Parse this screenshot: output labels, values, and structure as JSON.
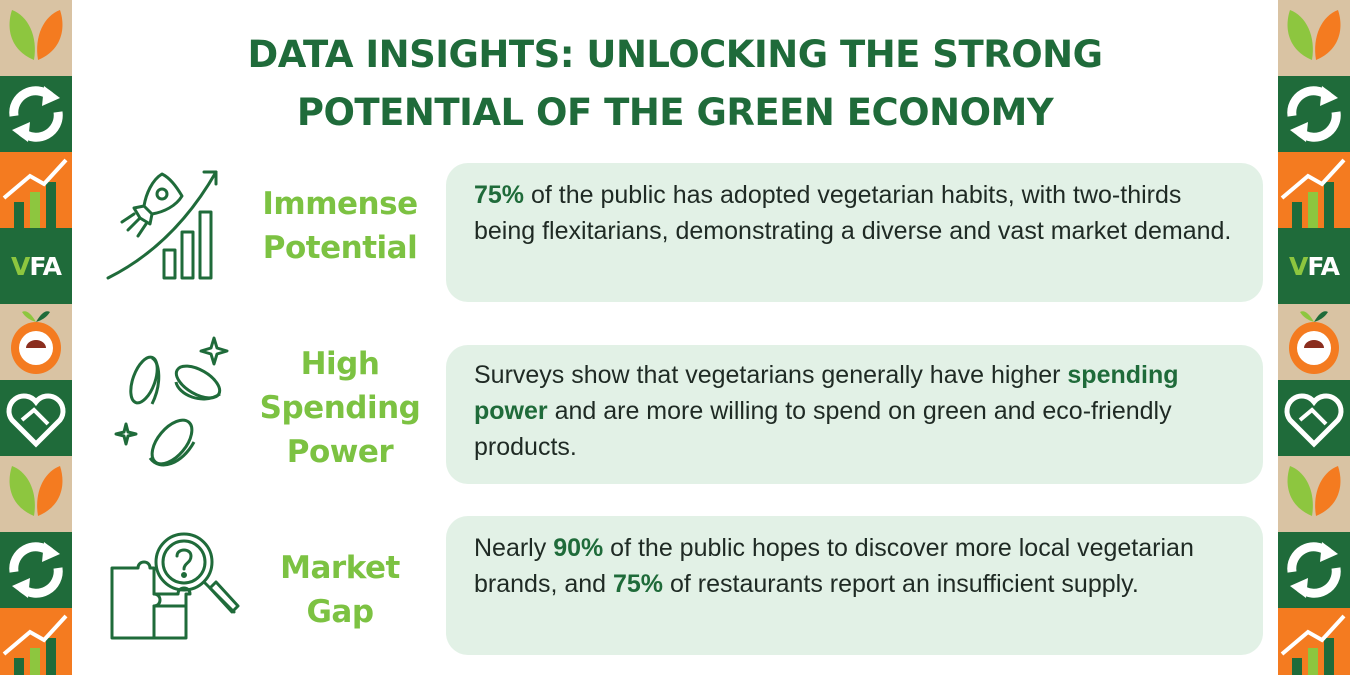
{
  "title": {
    "line1": "DATA INSIGHTS: UNLOCKING THE STRONG",
    "line2": "POTENTIAL OF THE GREEN ECONOMY"
  },
  "side_logo": {
    "part1": "V",
    "part2": "FA"
  },
  "colors": {
    "dark_green": "#1f6b3a",
    "light_green": "#7cc242",
    "card_bg": "#e2f1e6",
    "orange": "#f47b20",
    "tan": "#d9c3a3"
  },
  "rows": [
    {
      "icon": "rocket-growth-chart-icon",
      "label_lines": [
        "Immense",
        "Potential"
      ],
      "highlight_1": "75%",
      "text_1": " of the public has adopted vegetarian habits, with two-thirds being flexitarians, demonstrating a diverse and vast market demand."
    },
    {
      "icon": "coins-icon",
      "label_lines": [
        "High",
        "Spending",
        "Power"
      ],
      "text_1": "Surveys show that vegetarians generally have higher ",
      "highlight_1": "spending power",
      "text_2": " and are more willing to spend on green and eco-friendly products."
    },
    {
      "icon": "puzzle-magnifier-icon",
      "label_lines": [
        "Market",
        "Gap"
      ],
      "text_1": "Nearly ",
      "highlight_1": "90%",
      "text_2": " of the public hopes to discover more local vegetarian brands, and ",
      "highlight_2": "75%",
      "text_3": " of restaurants report an insufficient supply."
    }
  ]
}
